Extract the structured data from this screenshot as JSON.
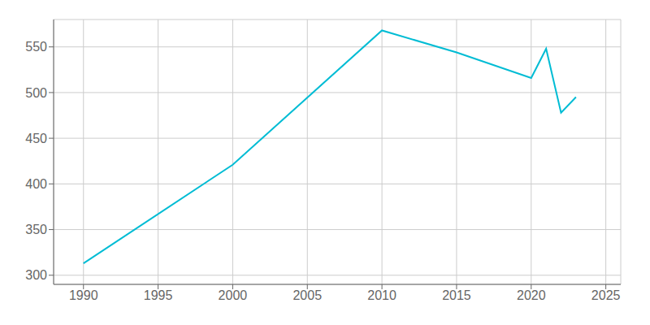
{
  "chart_data": {
    "type": "line",
    "x": [
      1990,
      2000,
      2010,
      2015,
      2020,
      2021,
      2022,
      2023
    ],
    "values": [
      313,
      421,
      568,
      544,
      516,
      548,
      478,
      495
    ],
    "color": "#00BCD4",
    "xlim": [
      1988,
      2026
    ],
    "ylim": [
      290,
      580
    ],
    "xticks": [
      1990,
      1995,
      2000,
      2005,
      2010,
      2015,
      2020,
      2025
    ],
    "yticks": [
      300,
      350,
      400,
      450,
      500,
      550
    ],
    "grid": true
  }
}
